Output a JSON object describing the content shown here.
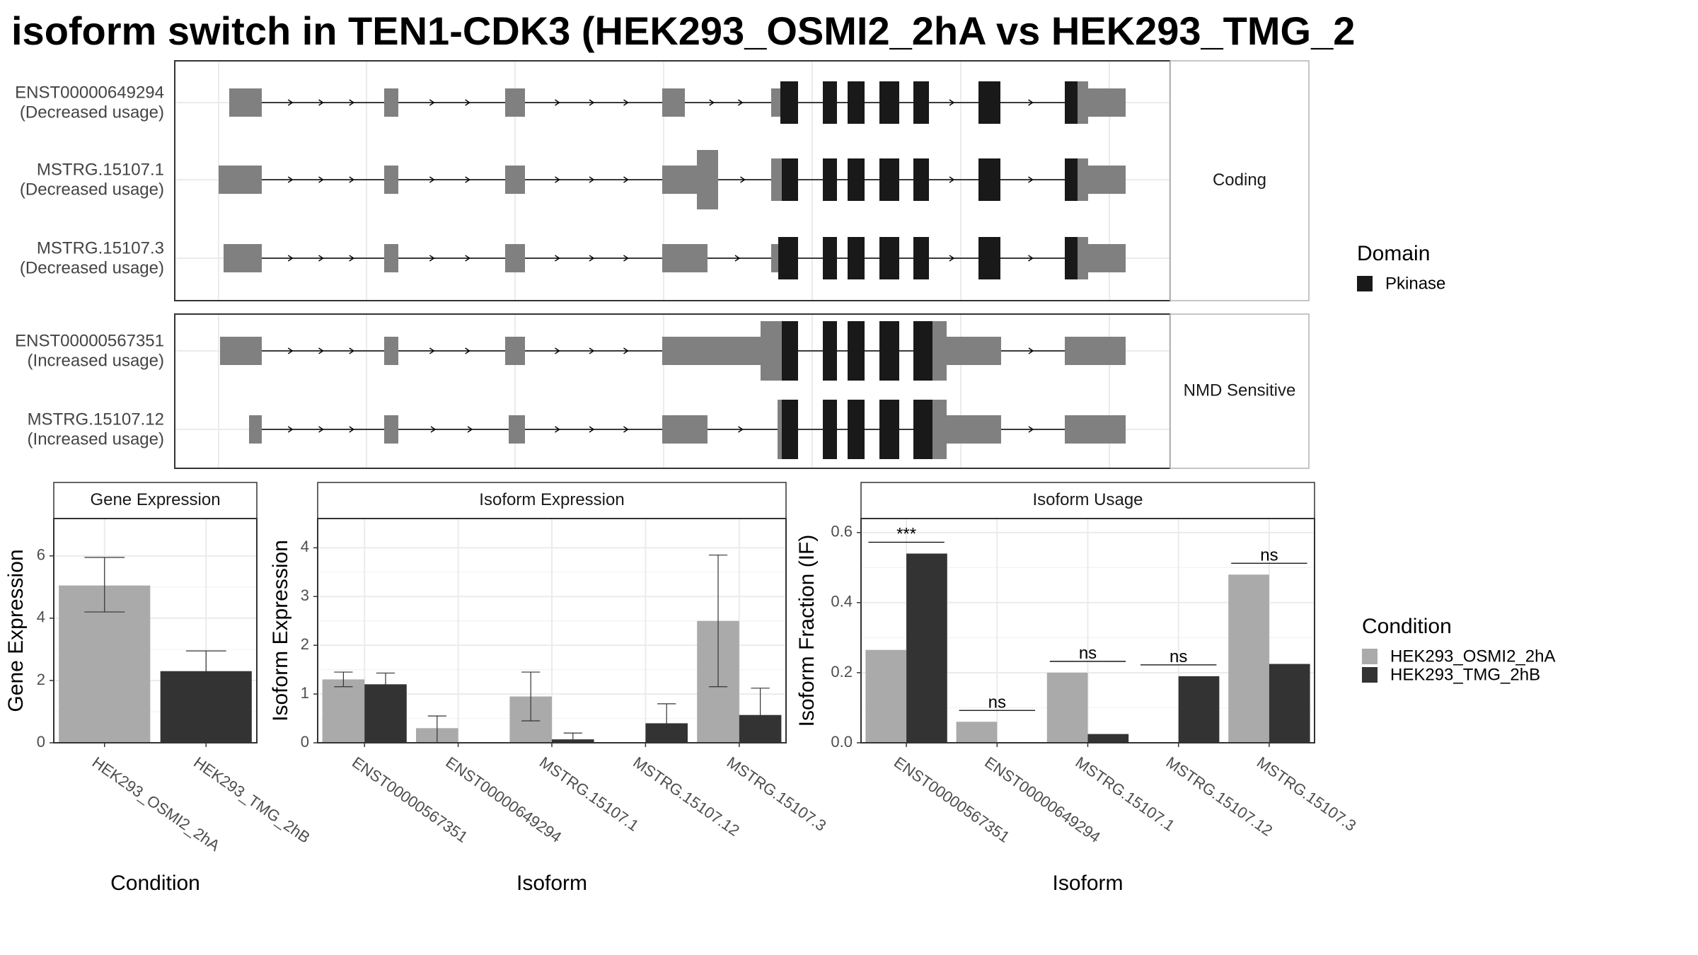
{
  "title": "isoform switch in TEN1-CDK3 (HEK293_OSMI2_2hA vs HEK293_TMG_2",
  "colors": {
    "utr": "#808080",
    "cds": "#7f7f7f",
    "domain": "#191919",
    "cond_a": "#aaaaaa",
    "cond_b": "#333333",
    "grid": "#ebebeb",
    "strip": "#ffffff",
    "panel_border": "#333333"
  },
  "chart_data": [
    {
      "type": "isoform-structure",
      "groups": [
        {
          "label": "Coding",
          "isoforms": [
            {
              "id": "ENST00000649294",
              "change": "(Decreased usage)"
            },
            {
              "id": "MSTRG.15107.1",
              "change": "(Decreased usage)"
            },
            {
              "id": "MSTRG.15107.3",
              "change": "(Decreased usage)"
            }
          ]
        },
        {
          "label": "NMD Sensitive",
          "isoforms": [
            {
              "id": "ENST00000567351",
              "change": "(Increased usage)"
            },
            {
              "id": "MSTRG.15107.12",
              "change": "(Increased usage)"
            }
          ]
        }
      ],
      "legend": {
        "title": "Domain",
        "items": [
          "Pkinase"
        ]
      }
    },
    {
      "type": "bar",
      "title": "Gene Expression",
      "xlabel": "Condition",
      "ylabel": "Gene Expression",
      "categories": [
        "HEK293_OSMI2_2hA",
        "HEK293_TMG_2hB"
      ],
      "values": [
        5.05,
        2.3
      ],
      "errors": [
        [
          4.2,
          5.95
        ],
        [
          1.65,
          2.95
        ]
      ],
      "ylim": [
        0,
        7.2
      ],
      "yticks": [
        "0",
        "2",
        "4",
        "6"
      ],
      "ytick_values": [
        0,
        2,
        4,
        6
      ]
    },
    {
      "type": "bar",
      "title": "Isoform Expression",
      "xlabel": "Isoform",
      "ylabel": "Isoform Expression",
      "categories": [
        "ENST00000567351",
        "ENST00000649294",
        "MSTRG.15107.1",
        "MSTRG.15107.12",
        "MSTRG.15107.3"
      ],
      "series": [
        {
          "values": [
            1.3,
            0.3,
            0.95,
            0.0,
            2.5
          ],
          "errors": [
            [
              1.15,
              1.45
            ],
            [
              0.0,
              0.55
            ],
            [
              0.45,
              1.45
            ],
            [
              0.0,
              0.0
            ],
            [
              1.15,
              3.85
            ]
          ]
        },
        {
          "values": [
            1.2,
            0.0,
            0.07,
            0.4,
            0.57
          ],
          "errors": [
            [
              0.97,
              1.43
            ],
            [
              0.0,
              0.0
            ],
            [
              0.0,
              0.2
            ],
            [
              0.0,
              0.8
            ],
            [
              0.0,
              1.12
            ]
          ]
        }
      ],
      "ylim": [
        0,
        4.6
      ],
      "yticks": [
        "0",
        "1",
        "2",
        "3",
        "4"
      ],
      "ytick_values": [
        0,
        1,
        2,
        3,
        4
      ]
    },
    {
      "type": "bar",
      "title": "Isoform Usage",
      "xlabel": "Isoform",
      "ylabel": "Isoform Fraction (IF)",
      "categories": [
        "ENST00000567351",
        "ENST00000649294",
        "MSTRG.15107.1",
        "MSTRG.15107.12",
        "MSTRG.15107.3"
      ],
      "series": [
        {
          "values": [
            0.265,
            0.06,
            0.2,
            0.0,
            0.48
          ]
        },
        {
          "values": [
            0.54,
            0.0,
            0.025,
            0.19,
            0.225
          ]
        }
      ],
      "significance": [
        "***",
        "ns",
        "ns",
        "ns",
        "ns"
      ],
      "ylim": [
        0,
        0.64
      ],
      "yticks": [
        "0.0",
        "0.2",
        "0.4",
        "0.6"
      ],
      "ytick_values": [
        0,
        0.2,
        0.4,
        0.6
      ],
      "legend": {
        "title": "Condition",
        "items": [
          "HEK293_OSMI2_2hA",
          "HEK293_TMG_2hB"
        ]
      }
    }
  ]
}
